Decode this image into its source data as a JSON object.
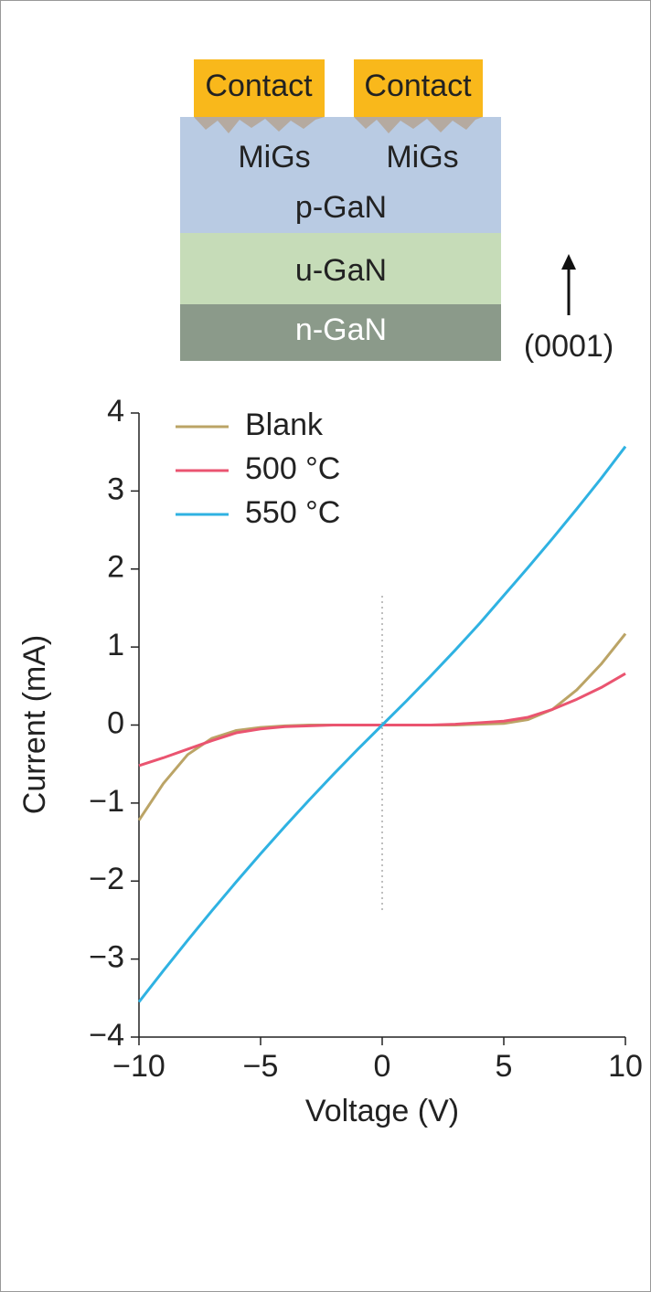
{
  "diagram": {
    "contacts": [
      "Contact",
      "Contact"
    ],
    "migs": [
      "MiGs",
      "MiGs"
    ],
    "layers": [
      "p-GaN",
      "u-GaN",
      "n-GaN"
    ],
    "direction": "(0001)"
  },
  "chart_data": {
    "type": "line",
    "x": [
      -10,
      -9,
      -8,
      -7,
      -6,
      -5,
      -4,
      -3,
      -2,
      -1,
      0,
      1,
      2,
      3,
      4,
      5,
      6,
      7,
      8,
      9,
      10
    ],
    "series": [
      {
        "name": "Blank",
        "color": "#bba466",
        "values": [
          -1.22,
          -0.75,
          -0.38,
          -0.17,
          -0.07,
          -0.03,
          -0.01,
          0,
          0,
          0,
          0,
          0,
          0,
          0,
          0.01,
          0.02,
          0.07,
          0.2,
          0.45,
          0.78,
          1.17
        ]
      },
      {
        "name": "500 °C",
        "color": "#ea5470",
        "values": [
          -0.52,
          -0.42,
          -0.31,
          -0.2,
          -0.1,
          -0.05,
          -0.02,
          -0.01,
          0,
          0,
          0,
          0,
          0,
          0.01,
          0.03,
          0.05,
          0.1,
          0.2,
          0.33,
          0.48,
          0.66
        ]
      },
      {
        "name": "550 °C",
        "color": "#2fb2e2",
        "values": [
          -3.55,
          -3.15,
          -2.76,
          -2.38,
          -2.01,
          -1.65,
          -1.3,
          -0.96,
          -0.63,
          -0.31,
          0,
          0.31,
          0.63,
          0.96,
          1.3,
          1.66,
          2.02,
          2.39,
          2.77,
          3.16,
          3.57
        ]
      }
    ],
    "x_label": "Voltage (V)",
    "y_label": "Current (mA)",
    "xlim": [
      -10,
      10
    ],
    "ylim": [
      -4,
      4
    ],
    "xticks": [
      {
        "value": -10,
        "label": "−10"
      },
      {
        "value": -5,
        "label": "−5"
      },
      0,
      5,
      10
    ],
    "yticks": [
      {
        "value": -4,
        "label": "−4"
      },
      {
        "value": -3,
        "label": "−3"
      },
      {
        "value": -2,
        "label": "−2"
      },
      {
        "value": -1,
        "label": "−1"
      },
      0,
      1,
      2,
      3,
      4
    ],
    "legend": "upper left"
  }
}
